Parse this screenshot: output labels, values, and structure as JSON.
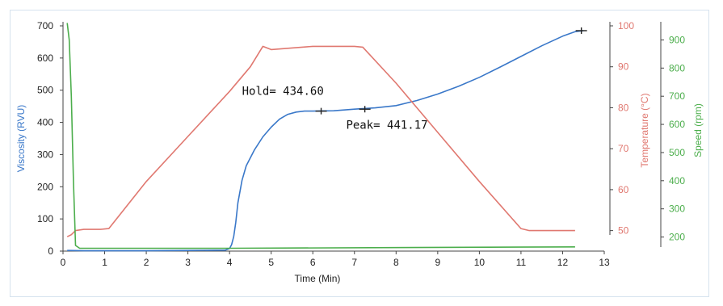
{
  "chart_data": {
    "type": "line",
    "xlabel": "Time (Min)",
    "x_ticks": [
      0,
      1,
      2,
      3,
      4,
      5,
      6,
      7,
      8,
      9,
      10,
      11,
      12,
      13
    ],
    "xlim": [
      0,
      13
    ],
    "axes": {
      "viscosity": {
        "label": "Viscosity (RVU)",
        "ylim": [
          0,
          700
        ],
        "ticks": [
          0,
          100,
          200,
          300,
          400,
          500,
          600,
          700
        ],
        "color": "#3a78c9"
      },
      "temperature": {
        "label": "Temperature (°C)",
        "ylim": [
          45,
          100
        ],
        "ticks": [
          50,
          60,
          70,
          80,
          90,
          100
        ],
        "color": "#e07870"
      },
      "speed": {
        "label": "Speed (rpm)",
        "ylim": [
          150,
          950
        ],
        "ticks": [
          200,
          300,
          400,
          500,
          600,
          700,
          800,
          900
        ],
        "color": "#4cae4c"
      }
    },
    "series": [
      {
        "axis": "viscosity",
        "color": "#3a78c9",
        "x": [
          0.1,
          0.5,
          1,
          2,
          3,
          3.9,
          4.0,
          4.05,
          4.1,
          4.15,
          4.2,
          4.3,
          4.4,
          4.6,
          4.8,
          5.0,
          5.2,
          5.4,
          5.6,
          5.8,
          6.0,
          6.5,
          7.0,
          7.5,
          8.0,
          8.5,
          9.0,
          9.5,
          10.0,
          10.5,
          11.0,
          11.5,
          12.0,
          12.3,
          12.5
        ],
        "y": [
          2,
          1,
          1,
          1,
          2,
          3,
          8,
          20,
          45,
          90,
          150,
          220,
          265,
          315,
          355,
          385,
          410,
          425,
          432,
          435,
          435,
          436,
          441,
          445,
          452,
          468,
          488,
          512,
          540,
          572,
          605,
          638,
          668,
          682,
          685
        ]
      },
      {
        "axis": "temperature",
        "color": "#e07870",
        "x": [
          0.1,
          0.2,
          0.3,
          0.5,
          0.9,
          1.1,
          2,
          3,
          4,
          4.5,
          4.8,
          5.0,
          6,
          7,
          7.2,
          8,
          9,
          10,
          11,
          11.2,
          12,
          12.3
        ],
        "y": [
          48.5,
          49,
          50,
          50.3,
          50.3,
          50.5,
          62,
          73,
          84,
          90,
          95,
          94.2,
          95,
          95,
          94.8,
          86,
          74,
          62,
          50.5,
          50,
          50,
          50
        ]
      },
      {
        "axis": "speed",
        "color": "#4cae4c",
        "x": [
          0.1,
          0.15,
          0.2,
          0.25,
          0.3,
          0.4,
          1,
          4,
          12.3
        ],
        "y": [
          960,
          900,
          700,
          400,
          170,
          160,
          160,
          160,
          165
        ]
      }
    ],
    "annotations": [
      {
        "text": "Hold= 434.60",
        "x": 6.1,
        "y": 435,
        "label_at": {
          "x": 4.3,
          "y": 485
        }
      },
      {
        "text": "Peak= 441.17",
        "x": 7.1,
        "y": 441,
        "label_at": {
          "x": 6.8,
          "y": 380
        }
      }
    ],
    "markers": [
      {
        "x": 6.2,
        "y": 435
      },
      {
        "x": 7.25,
        "y": 441
      },
      {
        "x": 12.45,
        "y": 685
      }
    ]
  }
}
